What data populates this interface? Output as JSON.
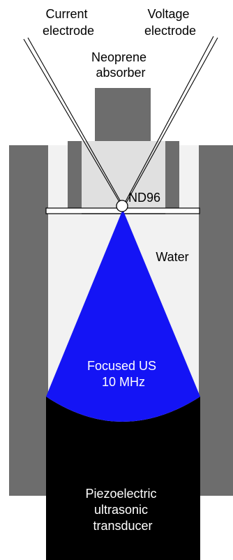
{
  "labels": {
    "current_electrode": [
      "Current",
      "electrode"
    ],
    "voltage_electrode": [
      "Voltage",
      "electrode"
    ],
    "absorber": [
      "Neoprene",
      "absorber"
    ],
    "cell": "ND96",
    "water": "Water",
    "focused_us": [
      "Focused US",
      "10 MHz"
    ],
    "transducer": [
      "Piezoelectric",
      "ultrasonic",
      "transducer"
    ]
  },
  "colors": {
    "housing": "#6d6d6d",
    "water": "#f2f2f2",
    "chamber": "#e0e0e0",
    "ultrasound_beam": "#1414f5",
    "transducer": "#000000",
    "outline": "#000000"
  }
}
